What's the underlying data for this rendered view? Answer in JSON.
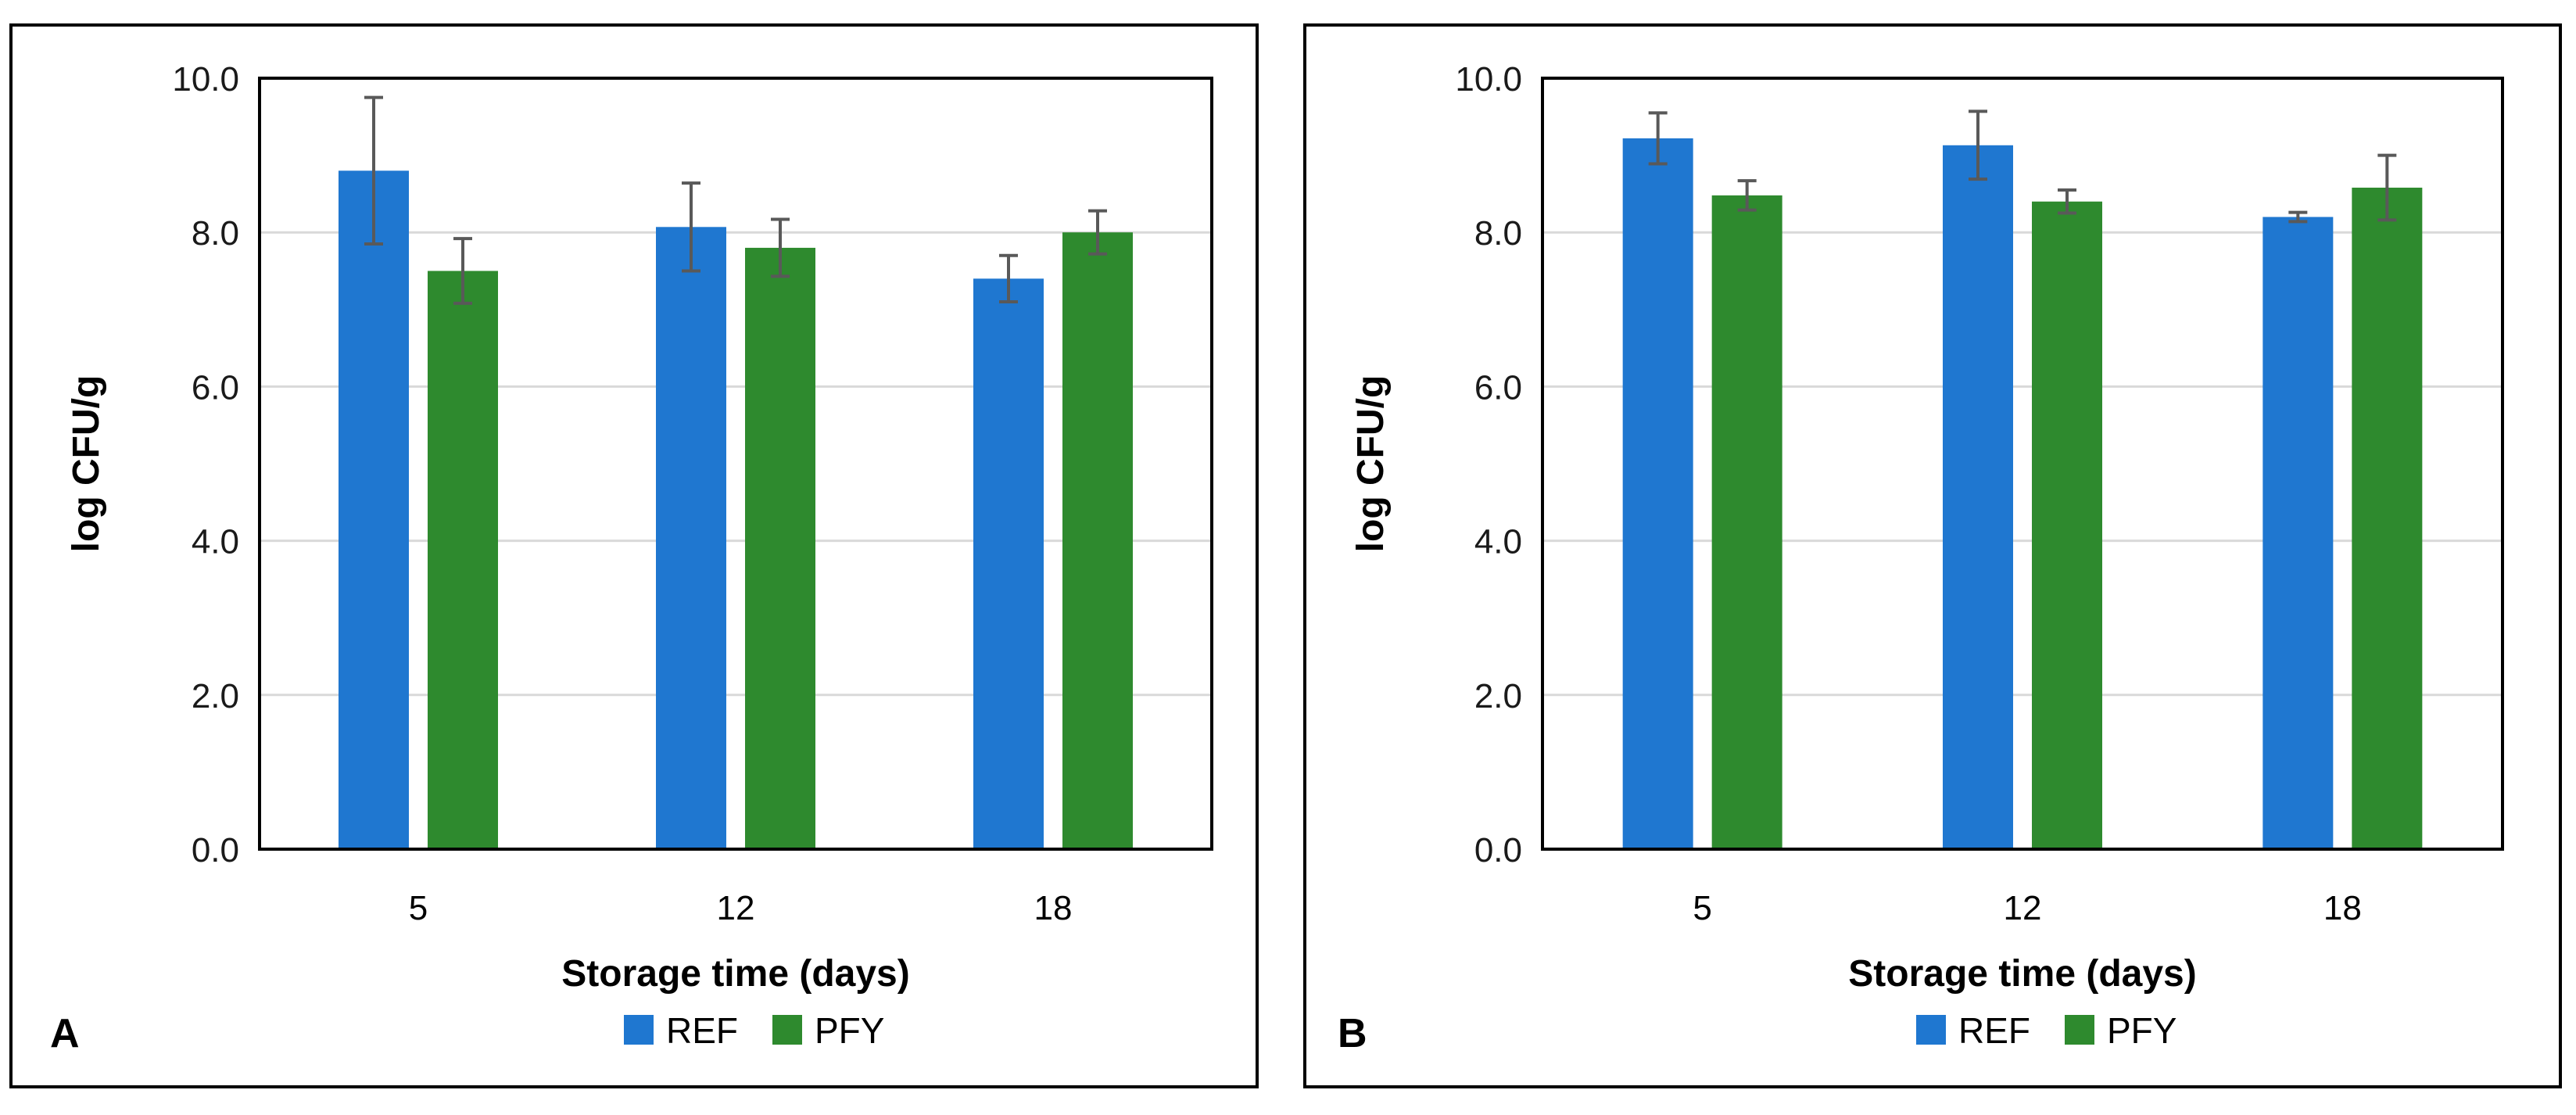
{
  "chart_data": [
    {
      "type": "bar",
      "panel_label": "A",
      "categories": [
        "5",
        "12",
        "18"
      ],
      "series": [
        {
          "name": "REF",
          "color": "#1f77d0",
          "values": [
            8.8,
            8.07,
            7.4
          ],
          "errors": [
            0.95,
            0.57,
            0.3
          ]
        },
        {
          "name": "PFY",
          "color": "#2e8a2e",
          "values": [
            7.5,
            7.8,
            8.0
          ],
          "errors": [
            0.42,
            0.37,
            0.28
          ]
        }
      ],
      "title": "",
      "xlabel": "Storage time (days)",
      "ylabel": "log CFU/g",
      "ylim": [
        0,
        10
      ],
      "yticks": [
        "0.0",
        "2.0",
        "4.0",
        "6.0",
        "8.0",
        "10.0"
      ],
      "grid": true,
      "legend": "bottom-center"
    },
    {
      "type": "bar",
      "panel_label": "B",
      "categories": [
        "5",
        "12",
        "18"
      ],
      "series": [
        {
          "name": "REF",
          "color": "#1f77d0",
          "values": [
            9.22,
            9.13,
            8.2
          ],
          "errors": [
            0.33,
            0.44,
            0.06
          ]
        },
        {
          "name": "PFY",
          "color": "#2e8a2e",
          "values": [
            8.48,
            8.4,
            8.58
          ],
          "errors": [
            0.19,
            0.15,
            0.42
          ]
        }
      ],
      "title": "",
      "xlabel": "Storage time (days)",
      "ylabel": "log CFU/g",
      "ylim": [
        0,
        10
      ],
      "yticks": [
        "0.0",
        "2.0",
        "4.0",
        "6.0",
        "8.0",
        "10.0"
      ],
      "grid": true,
      "legend": "bottom-center"
    }
  ]
}
